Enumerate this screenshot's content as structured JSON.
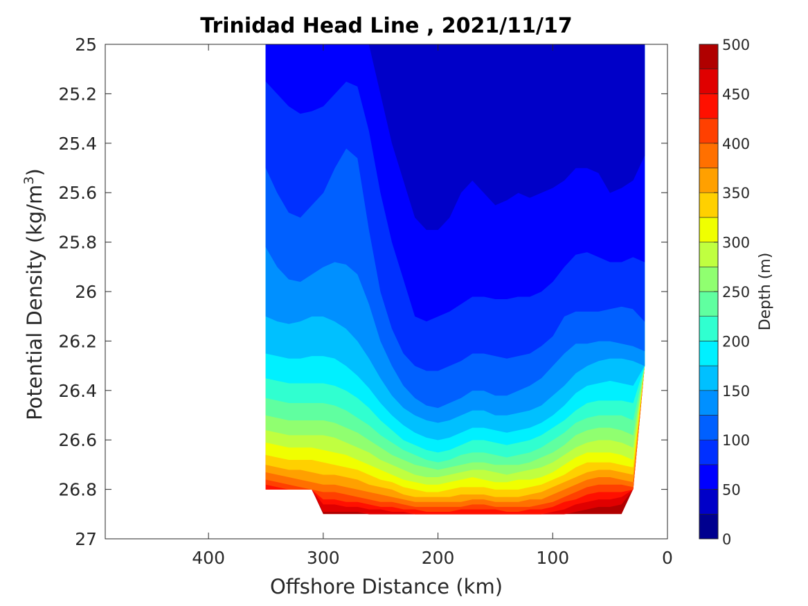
{
  "chart_data": {
    "type": "contour",
    "title": "Trinidad Head Line , 2021/11/17",
    "xlabel": "Offshore Distance (km)",
    "ylabel": "Potential Density (kg/m",
    "ylabel_sup": "3",
    "ylabel_close": ")",
    "xlim": [
      490,
      0
    ],
    "ylim": [
      27,
      25
    ],
    "y_reversed": true,
    "x_ticks": [
      400,
      300,
      200,
      100,
      0
    ],
    "y_ticks": [
      25,
      25.2,
      25.4,
      25.6,
      25.8,
      26,
      26.2,
      26.4,
      26.6,
      26.8,
      27
    ],
    "y_tick_labels": [
      "25",
      "25.2",
      "25.4",
      "25.6",
      "25.8",
      "26",
      "26.2",
      "26.4",
      "26.6",
      "26.8",
      "27"
    ],
    "colorbar": {
      "label": "Depth (m)",
      "range": [
        0,
        500
      ],
      "ticks": [
        0,
        50,
        100,
        150,
        200,
        250,
        300,
        350,
        400,
        450,
        500
      ],
      "levels": [
        0,
        25,
        50,
        75,
        100,
        125,
        150,
        175,
        200,
        225,
        250,
        275,
        300,
        325,
        350,
        375,
        400,
        425,
        450,
        475,
        500
      ],
      "colormap": "jet",
      "colors": [
        "#00008f",
        "#0000c8",
        "#0000ff",
        "#0030ff",
        "#0060ff",
        "#0090ff",
        "#00c0ff",
        "#00f0ff",
        "#30ffd0",
        "#60ffa0",
        "#90ff70",
        "#c0ff40",
        "#f0ff00",
        "#ffd000",
        "#ffa000",
        "#ff7000",
        "#ff4000",
        "#ff1000",
        "#e00000",
        "#b00000"
      ]
    },
    "x": [
      350,
      340,
      330,
      320,
      310,
      300,
      290,
      280,
      270,
      260,
      250,
      240,
      230,
      220,
      210,
      200,
      190,
      180,
      170,
      160,
      150,
      140,
      130,
      120,
      110,
      100,
      90,
      80,
      70,
      60,
      50,
      40,
      30,
      20
    ],
    "bottom_density": [
      26.8,
      26.8,
      26.8,
      26.8,
      26.8,
      26.9,
      26.9,
      26.9,
      26.9,
      26.9,
      26.9,
      26.9,
      26.9,
      26.9,
      26.9,
      26.9,
      26.9,
      26.9,
      26.9,
      26.9,
      26.9,
      26.9,
      26.9,
      26.9,
      26.9,
      26.9,
      26.9,
      26.9,
      26.9,
      26.9,
      26.9,
      26.9,
      26.8,
      26.3
    ],
    "contours": [
      {
        "depth": 50,
        "density": [
          25,
          25,
          25,
          25,
          25,
          25,
          25,
          25,
          25,
          25,
          25.2,
          25.4,
          25.55,
          25.7,
          25.75,
          25.75,
          25.7,
          25.6,
          25.55,
          25.6,
          25.65,
          25.63,
          25.6,
          25.62,
          25.6,
          25.58,
          25.55,
          25.5,
          25.5,
          25.52,
          25.6,
          25.58,
          25.55,
          25.45
        ]
      },
      {
        "depth": 75,
        "density": [
          25.15,
          25.2,
          25.25,
          25.28,
          25.27,
          25.25,
          25.2,
          25.15,
          25.17,
          25.35,
          25.6,
          25.8,
          25.95,
          26.1,
          26.12,
          26.1,
          26.08,
          26.05,
          26.02,
          26.02,
          26.03,
          26.03,
          26.02,
          26.02,
          26.0,
          25.96,
          25.9,
          25.85,
          25.84,
          25.86,
          25.88,
          25.88,
          25.86,
          25.88
        ]
      },
      {
        "depth": 100,
        "density": [
          25.5,
          25.6,
          25.68,
          25.7,
          25.65,
          25.6,
          25.5,
          25.42,
          25.46,
          25.75,
          26.0,
          26.15,
          26.25,
          26.3,
          26.32,
          26.32,
          26.3,
          26.28,
          26.25,
          26.25,
          26.26,
          26.27,
          26.26,
          26.25,
          26.22,
          26.18,
          26.1,
          26.08,
          26.08,
          26.08,
          26.07,
          26.06,
          26.07,
          26.12
        ]
      },
      {
        "depth": 125,
        "density": [
          25.82,
          25.9,
          25.95,
          25.96,
          25.93,
          25.9,
          25.88,
          25.89,
          25.93,
          26.05,
          26.2,
          26.3,
          26.38,
          26.43,
          26.46,
          26.47,
          26.45,
          26.43,
          26.4,
          26.4,
          26.42,
          26.42,
          26.4,
          26.38,
          26.35,
          26.3,
          26.25,
          26.21,
          26.21,
          26.2,
          26.2,
          26.21,
          26.22,
          26.24
        ]
      },
      {
        "depth": 150,
        "density": [
          26.1,
          26.12,
          26.13,
          26.12,
          26.1,
          26.1,
          26.12,
          26.15,
          26.2,
          26.27,
          26.35,
          26.42,
          26.47,
          26.5,
          26.52,
          26.53,
          26.52,
          26.5,
          26.48,
          26.48,
          26.5,
          26.5,
          26.49,
          26.48,
          26.46,
          26.42,
          26.38,
          26.33,
          26.3,
          26.28,
          26.27,
          26.27,
          26.28,
          26.3
        ]
      },
      {
        "depth": 175,
        "density": [
          26.25,
          26.26,
          26.27,
          26.27,
          26.26,
          26.26,
          26.27,
          26.3,
          26.34,
          26.39,
          26.45,
          26.5,
          26.54,
          26.57,
          26.59,
          26.6,
          26.59,
          26.57,
          26.55,
          26.55,
          26.56,
          26.57,
          26.56,
          26.55,
          26.53,
          26.5,
          26.46,
          26.41,
          26.38,
          26.37,
          26.36,
          26.37,
          26.38,
          26.3
        ]
      },
      {
        "depth": 200,
        "density": [
          26.35,
          26.36,
          26.37,
          26.37,
          26.37,
          26.37,
          26.38,
          26.4,
          26.43,
          26.47,
          26.52,
          26.56,
          26.6,
          26.62,
          26.64,
          26.65,
          26.64,
          26.62,
          26.6,
          26.6,
          26.61,
          26.62,
          26.61,
          26.6,
          26.58,
          26.55,
          26.52,
          26.48,
          26.45,
          26.44,
          26.44,
          26.44,
          26.45,
          26.3
        ]
      },
      {
        "depth": 225,
        "density": [
          26.43,
          26.44,
          26.45,
          26.45,
          26.45,
          26.45,
          26.46,
          26.48,
          26.51,
          26.54,
          26.58,
          26.61,
          26.64,
          26.66,
          26.68,
          26.69,
          26.68,
          26.66,
          26.65,
          26.65,
          26.66,
          26.67,
          26.66,
          26.65,
          26.63,
          26.6,
          26.57,
          26.53,
          26.51,
          26.5,
          26.5,
          26.5,
          26.52,
          26.3
        ]
      },
      {
        "depth": 250,
        "density": [
          26.5,
          26.51,
          26.52,
          26.52,
          26.52,
          26.52,
          26.53,
          26.55,
          26.57,
          26.6,
          26.63,
          26.66,
          26.68,
          26.7,
          26.71,
          26.72,
          26.71,
          26.7,
          26.69,
          26.69,
          26.7,
          26.7,
          26.7,
          26.69,
          26.67,
          26.65,
          26.62,
          26.58,
          26.56,
          26.55,
          26.55,
          26.56,
          26.58,
          26.3
        ]
      },
      {
        "depth": 275,
        "density": [
          26.56,
          26.57,
          26.58,
          26.58,
          26.58,
          26.58,
          26.59,
          26.61,
          26.63,
          26.65,
          26.68,
          26.7,
          26.72,
          26.74,
          26.75,
          26.75,
          26.74,
          26.73,
          26.72,
          26.72,
          26.73,
          26.74,
          26.73,
          26.72,
          26.71,
          26.69,
          26.66,
          26.63,
          26.61,
          26.6,
          26.6,
          26.61,
          26.63,
          26.3
        ]
      },
      {
        "depth": 300,
        "density": [
          26.61,
          26.62,
          26.63,
          26.63,
          26.63,
          26.64,
          26.65,
          26.66,
          26.68,
          26.7,
          26.72,
          26.74,
          26.76,
          26.77,
          26.78,
          26.78,
          26.77,
          26.76,
          26.75,
          26.76,
          26.77,
          26.77,
          26.76,
          26.76,
          26.75,
          26.73,
          26.7,
          26.67,
          26.65,
          26.65,
          26.65,
          26.66,
          26.68,
          26.3
        ]
      },
      {
        "depth": 325,
        "density": [
          26.66,
          26.67,
          26.68,
          26.68,
          26.68,
          26.69,
          26.7,
          26.71,
          26.72,
          26.74,
          26.76,
          26.77,
          26.79,
          26.8,
          26.81,
          26.81,
          26.8,
          26.79,
          26.79,
          26.79,
          26.8,
          26.8,
          26.8,
          26.79,
          26.78,
          26.76,
          26.74,
          26.71,
          26.69,
          26.69,
          26.69,
          26.7,
          26.71,
          26.3
        ]
      },
      {
        "depth": 350,
        "density": [
          26.7,
          26.71,
          26.72,
          26.72,
          26.73,
          26.74,
          26.74,
          26.75,
          26.76,
          26.78,
          26.79,
          26.8,
          26.82,
          26.83,
          26.83,
          26.83,
          26.83,
          26.82,
          26.82,
          26.82,
          26.83,
          26.83,
          26.83,
          26.82,
          26.81,
          26.79,
          26.77,
          26.75,
          26.73,
          26.72,
          26.72,
          26.73,
          26.74,
          26.3
        ]
      },
      {
        "depth": 375,
        "density": [
          26.73,
          26.74,
          26.75,
          26.76,
          26.77,
          26.78,
          26.78,
          26.79,
          26.8,
          26.81,
          26.82,
          26.83,
          26.84,
          26.85,
          26.85,
          26.85,
          26.85,
          26.85,
          26.84,
          26.84,
          26.85,
          26.85,
          26.85,
          26.84,
          26.84,
          26.82,
          26.8,
          26.78,
          26.76,
          26.75,
          26.75,
          26.76,
          26.77,
          26.3
        ]
      },
      {
        "depth": 400,
        "density": [
          26.76,
          26.77,
          26.78,
          26.79,
          26.8,
          26.81,
          26.81,
          26.82,
          26.83,
          26.84,
          26.85,
          26.85,
          26.86,
          26.87,
          26.87,
          26.87,
          26.87,
          26.87,
          26.86,
          26.86,
          26.87,
          26.87,
          26.87,
          26.87,
          26.86,
          26.85,
          26.83,
          26.81,
          26.79,
          26.78,
          26.78,
          26.78,
          26.79,
          26.3
        ]
      },
      {
        "depth": 425,
        "density": [
          26.78,
          26.79,
          26.8,
          26.81,
          26.83,
          26.84,
          26.84,
          26.85,
          26.85,
          26.86,
          26.87,
          26.87,
          26.88,
          26.88,
          26.89,
          26.89,
          26.89,
          26.88,
          26.88,
          26.88,
          26.88,
          26.89,
          26.89,
          26.88,
          26.88,
          26.87,
          26.85,
          26.84,
          26.82,
          26.81,
          26.81,
          26.81,
          26.8,
          26.3
        ]
      },
      {
        "depth": 450,
        "density": [
          26.8,
          26.8,
          26.8,
          26.8,
          26.85,
          26.86,
          26.86,
          26.87,
          26.87,
          26.88,
          26.88,
          26.89,
          26.89,
          26.9,
          26.9,
          26.9,
          26.9,
          26.9,
          26.9,
          26.9,
          26.9,
          26.9,
          26.9,
          26.9,
          26.9,
          26.89,
          26.88,
          26.86,
          26.85,
          26.84,
          26.84,
          26.83,
          26.8,
          26.3
        ]
      },
      {
        "depth": 475,
        "density": [
          26.8,
          26.8,
          26.8,
          26.8,
          26.87,
          26.89,
          26.89,
          26.89,
          26.89,
          26.9,
          26.9,
          26.9,
          26.9,
          26.9,
          26.9,
          26.9,
          26.9,
          26.9,
          26.9,
          26.9,
          26.9,
          26.9,
          26.9,
          26.9,
          26.9,
          26.9,
          26.9,
          26.89,
          26.88,
          26.87,
          26.87,
          26.86,
          26.8,
          26.3
        ]
      }
    ]
  }
}
